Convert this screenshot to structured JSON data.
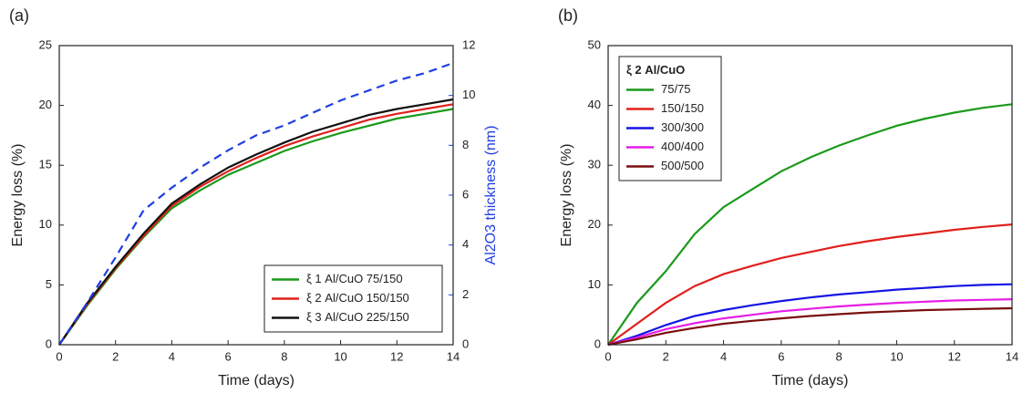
{
  "chart_data": [
    {
      "type": "line",
      "label": "(a)",
      "xlabel": "Time (days)",
      "ylabel": "Energy loss (%)",
      "y2label": "Al2O3 thickness (nm)",
      "x": [
        0,
        1,
        2,
        3,
        4,
        5,
        6,
        7,
        8,
        9,
        10,
        11,
        12,
        13,
        14
      ],
      "xlim": [
        0,
        14
      ],
      "xticks": [
        0,
        2,
        4,
        6,
        8,
        10,
        12,
        14
      ],
      "ylim": [
        0,
        25
      ],
      "yticks": [
        0,
        5,
        10,
        15,
        20,
        25
      ],
      "y2lim": [
        0,
        12
      ],
      "y2ticks": [
        0,
        2,
        4,
        6,
        8,
        10,
        12
      ],
      "y2color": "#1f3fe0",
      "legend": "lower right",
      "series": [
        {
          "name": "ξ 1 Al/CuO 75/150",
          "color": "#1a9a1a",
          "values": [
            0,
            3.3,
            6.3,
            9.0,
            11.4,
            12.9,
            14.2,
            15.2,
            16.2,
            17.0,
            17.7,
            18.3,
            18.9,
            19.3,
            19.7
          ]
        },
        {
          "name": "ξ 2 Al/CuO 150/150",
          "color": "#e0201c",
          "values": [
            0,
            3.4,
            6.4,
            9.1,
            11.6,
            13.2,
            14.5,
            15.6,
            16.6,
            17.4,
            18.1,
            18.8,
            19.3,
            19.7,
            20.1
          ]
        },
        {
          "name": "ξ 3 Al/CuO 225/150",
          "color": "#111111",
          "values": [
            0,
            3.5,
            6.5,
            9.3,
            11.8,
            13.4,
            14.8,
            15.9,
            16.9,
            17.8,
            18.5,
            19.2,
            19.7,
            20.1,
            20.5
          ]
        },
        {
          "color": "#1f3fe0",
          "axis": "y2",
          "linestyle": "dashed",
          "values": [
            0,
            1.7,
            3.5,
            5.4,
            6.3,
            7.1,
            7.8,
            8.4,
            8.8,
            9.3,
            9.8,
            10.2,
            10.6,
            10.9,
            11.3
          ]
        }
      ]
    },
    {
      "type": "line",
      "label": "(b)",
      "xlabel": "Time (days)",
      "ylabel": "Energy loss (%)",
      "x": [
        0,
        1,
        2,
        3,
        4,
        5,
        6,
        7,
        8,
        9,
        10,
        11,
        12,
        13,
        14
      ],
      "xlim": [
        0,
        14
      ],
      "xticks": [
        0,
        2,
        4,
        6,
        8,
        10,
        12,
        14
      ],
      "ylim": [
        0,
        50
      ],
      "yticks": [
        0,
        10,
        20,
        30,
        40,
        50
      ],
      "legend": "upper left",
      "legend_title": "ξ 2 Al/CuO",
      "series": [
        {
          "name": "75/75",
          "color": "#1a9a1a",
          "values": [
            0,
            7,
            12.3,
            18.5,
            23,
            26,
            29,
            31.3,
            33.3,
            35,
            36.6,
            37.8,
            38.8,
            39.6,
            40.2
          ]
        },
        {
          "name": "150/150",
          "color": "#e0201c",
          "values": [
            0,
            3.5,
            7,
            9.8,
            11.8,
            13.2,
            14.5,
            15.5,
            16.5,
            17.3,
            18,
            18.6,
            19.2,
            19.7,
            20.1
          ]
        },
        {
          "name": "300/300",
          "color": "#1414e6",
          "values": [
            0,
            1.5,
            3.3,
            4.8,
            5.8,
            6.6,
            7.3,
            7.9,
            8.4,
            8.8,
            9.2,
            9.5,
            9.8,
            10,
            10.1
          ]
        },
        {
          "name": "400/400",
          "color": "#e61ee6",
          "values": [
            0,
            1.2,
            2.6,
            3.6,
            4.4,
            5.0,
            5.6,
            6.0,
            6.4,
            6.7,
            7.0,
            7.2,
            7.4,
            7.5,
            7.6
          ]
        },
        {
          "name": "500/500",
          "color": "#7a0e0e",
          "values": [
            0,
            0.9,
            2.0,
            2.8,
            3.5,
            4.0,
            4.4,
            4.8,
            5.1,
            5.4,
            5.6,
            5.8,
            5.9,
            6.0,
            6.1
          ]
        }
      ]
    }
  ]
}
